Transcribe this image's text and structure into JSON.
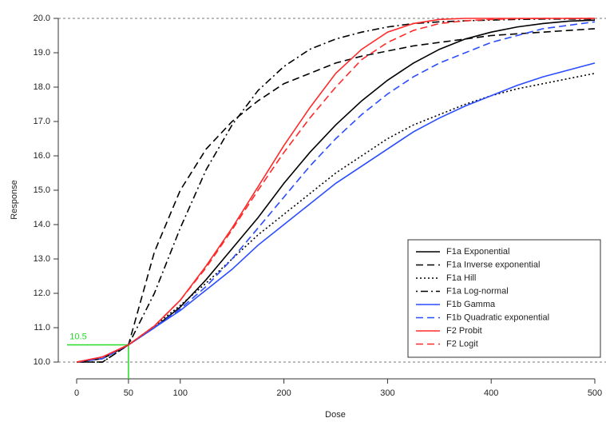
{
  "chart_data": {
    "type": "line",
    "x_label": "Dose",
    "y_label": "Response",
    "xlim": [
      0,
      500
    ],
    "ylim": [
      10,
      20
    ],
    "xticks": [
      0,
      50,
      100,
      200,
      300,
      400,
      500
    ],
    "yticks": [
      {
        "value": 10,
        "label": "10.0"
      },
      {
        "value": 11,
        "label": "11.0"
      },
      {
        "value": 12,
        "label": "12.0"
      },
      {
        "value": 13,
        "label": "13.0"
      },
      {
        "value": 14,
        "label": "14.0"
      },
      {
        "value": 15,
        "label": "15.0"
      },
      {
        "value": 16,
        "label": "16.0"
      },
      {
        "value": 17,
        "label": "17.0"
      },
      {
        "value": 18,
        "label": "18.0"
      },
      {
        "value": 19,
        "label": "19.0"
      },
      {
        "value": 20,
        "label": "20.0"
      }
    ],
    "hlines": [
      10,
      20
    ],
    "annotation": {
      "label": "10.5",
      "x": 50,
      "y": 10.5,
      "color": "#22dd22"
    },
    "legend_position": "bottom-right",
    "x": [
      0,
      25,
      50,
      75,
      100,
      125,
      150,
      175,
      200,
      225,
      250,
      275,
      300,
      325,
      350,
      375,
      400,
      425,
      450,
      475,
      500
    ],
    "series": [
      {
        "name": "F1a Exponential",
        "color": "#000000",
        "dash": "solid",
        "values": [
          10.0,
          10.1,
          10.5,
          11.0,
          11.6,
          12.4,
          13.3,
          14.2,
          15.2,
          16.1,
          16.9,
          17.6,
          18.2,
          18.7,
          19.1,
          19.4,
          19.6,
          19.75,
          19.85,
          19.92,
          19.95
        ]
      },
      {
        "name": "F1a Inverse exponential",
        "color": "#000000",
        "dash": "dashed",
        "values": [
          10.0,
          10.0,
          10.5,
          13.2,
          15.0,
          16.2,
          17.0,
          17.6,
          18.1,
          18.4,
          18.7,
          18.9,
          19.05,
          19.2,
          19.3,
          19.4,
          19.5,
          19.55,
          19.6,
          19.65,
          19.7
        ]
      },
      {
        "name": "F1a Hill",
        "color": "#000000",
        "dash": "dotted",
        "values": [
          10.0,
          10.1,
          10.5,
          11.05,
          11.65,
          12.3,
          13.0,
          13.7,
          14.3,
          14.9,
          15.5,
          16.0,
          16.5,
          16.9,
          17.2,
          17.5,
          17.75,
          17.95,
          18.1,
          18.25,
          18.4
        ]
      },
      {
        "name": "F1a Log-normal",
        "color": "#000000",
        "dash": "dashdot",
        "values": [
          10.0,
          10.0,
          10.5,
          12.0,
          13.9,
          15.6,
          16.9,
          17.9,
          18.6,
          19.1,
          19.4,
          19.6,
          19.75,
          19.85,
          19.9,
          19.93,
          19.95,
          19.97,
          19.98,
          19.98,
          19.98
        ]
      },
      {
        "name": "F1b Gamma",
        "color": "#2a4cff",
        "dash": "solid",
        "values": [
          10.0,
          10.15,
          10.5,
          11.0,
          11.5,
          12.1,
          12.7,
          13.4,
          14.0,
          14.6,
          15.2,
          15.7,
          16.2,
          16.7,
          17.1,
          17.45,
          17.75,
          18.05,
          18.3,
          18.5,
          18.7
        ]
      },
      {
        "name": "F1b Quadratic exponential",
        "color": "#2a4cff",
        "dash": "dashed",
        "values": [
          10.0,
          10.1,
          10.5,
          11.0,
          11.55,
          12.2,
          13.0,
          13.9,
          14.8,
          15.7,
          16.5,
          17.2,
          17.8,
          18.3,
          18.7,
          19.0,
          19.3,
          19.5,
          19.7,
          19.8,
          19.9
        ]
      },
      {
        "name": "F2 Probit",
        "color": "#ff2a2a",
        "dash": "solid",
        "values": [
          10.0,
          10.15,
          10.5,
          11.05,
          11.8,
          12.8,
          13.9,
          15.1,
          16.3,
          17.4,
          18.4,
          19.1,
          19.6,
          19.85,
          19.97,
          20.0,
          20.0,
          20.0,
          20.0,
          20.0,
          20.0
        ]
      },
      {
        "name": "F2 Logit",
        "color": "#ff2a2a",
        "dash": "dashed",
        "values": [
          10.0,
          10.15,
          10.5,
          11.05,
          11.8,
          12.75,
          13.85,
          15.0,
          16.1,
          17.1,
          18.0,
          18.8,
          19.3,
          19.65,
          19.85,
          19.93,
          19.97,
          19.99,
          20.0,
          20.0,
          20.0
        ]
      }
    ]
  }
}
